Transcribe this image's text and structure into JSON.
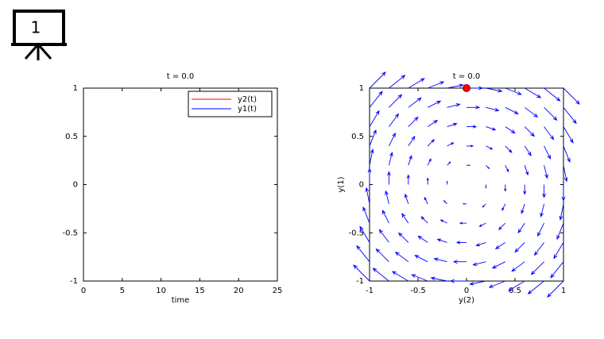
{
  "badge": "1",
  "chart_data": [
    {
      "type": "line",
      "title": "t = 0.0",
      "xlabel": "time",
      "xlim": [
        0,
        25
      ],
      "ylim": [
        -1,
        1
      ],
      "xticks": [
        0,
        5,
        10,
        15,
        20,
        25
      ],
      "yticks": [
        -1,
        -0.5,
        0,
        0.5,
        1
      ],
      "x": [],
      "series": [
        {
          "name": "y2(t)",
          "color": "#ff0000",
          "values": []
        },
        {
          "name": "y1(t)",
          "color": "#0000ff",
          "values": []
        }
      ],
      "legend": "upper right"
    },
    {
      "type": "quiver",
      "title": "t = 0.0",
      "xlabel": "y(2)",
      "ylabel": "y(1)",
      "xlim": [
        -1,
        1
      ],
      "ylim": [
        -1,
        1
      ],
      "xticks": [
        -1,
        -0.5,
        0,
        0.5,
        1
      ],
      "yticks": [
        -1,
        -0.5,
        0,
        0.5,
        1
      ],
      "color": "#0000ff",
      "x": [
        -1,
        -0.8,
        -0.6,
        -0.4,
        -0.2,
        0,
        0.2,
        0.4,
        0.6,
        0.8,
        1
      ],
      "y": [
        -1,
        -0.8,
        -0.6,
        -0.4,
        -0.2,
        0,
        0.2,
        0.4,
        0.6,
        0.8,
        1
      ],
      "u": [
        [
          -1,
          -1,
          -1,
          -1,
          -1,
          -1,
          -1,
          -1,
          -1,
          -1,
          -1
        ],
        [
          -0.8,
          -0.8,
          -0.8,
          -0.8,
          -0.8,
          -0.8,
          -0.8,
          -0.8,
          -0.8,
          -0.8,
          -0.8
        ],
        [
          -0.6,
          -0.6,
          -0.6,
          -0.6,
          -0.6,
          -0.6,
          -0.6,
          -0.6,
          -0.6,
          -0.6,
          -0.6
        ],
        [
          -0.4,
          -0.4,
          -0.4,
          -0.4,
          -0.4,
          -0.4,
          -0.4,
          -0.4,
          -0.4,
          -0.4,
          -0.4
        ],
        [
          -0.2,
          -0.2,
          -0.2,
          -0.2,
          -0.2,
          -0.2,
          -0.2,
          -0.2,
          -0.2,
          -0.2,
          -0.2
        ],
        [
          0,
          0,
          0,
          0,
          0,
          0,
          0,
          0,
          0,
          0,
          0
        ],
        [
          0.2,
          0.2,
          0.2,
          0.2,
          0.2,
          0.2,
          0.2,
          0.2,
          0.2,
          0.2,
          0.2
        ],
        [
          0.4,
          0.4,
          0.4,
          0.4,
          0.4,
          0.4,
          0.4,
          0.4,
          0.4,
          0.4,
          0.4
        ],
        [
          0.6,
          0.6,
          0.6,
          0.6,
          0.6,
          0.6,
          0.6,
          0.6,
          0.6,
          0.6,
          0.6
        ],
        [
          0.8,
          0.8,
          0.8,
          0.8,
          0.8,
          0.8,
          0.8,
          0.8,
          0.8,
          0.8,
          0.8
        ],
        [
          1,
          1,
          1,
          1,
          1,
          1,
          1,
          1,
          1,
          1,
          1
        ]
      ],
      "v": [
        [
          1,
          0.8,
          0.6,
          0.4,
          0.2,
          0,
          -0.2,
          -0.4,
          -0.6,
          -0.8,
          -1
        ],
        [
          1,
          0.8,
          0.6,
          0.4,
          0.2,
          0,
          -0.2,
          -0.4,
          -0.6,
          -0.8,
          -1
        ],
        [
          1,
          0.8,
          0.6,
          0.4,
          0.2,
          0,
          -0.2,
          -0.4,
          -0.6,
          -0.8,
          -1
        ],
        [
          1,
          0.8,
          0.6,
          0.4,
          0.2,
          0,
          -0.2,
          -0.4,
          -0.6,
          -0.8,
          -1
        ],
        [
          1,
          0.8,
          0.6,
          0.4,
          0.2,
          0,
          -0.2,
          -0.4,
          -0.6,
          -0.8,
          -1
        ],
        [
          1,
          0.8,
          0.6,
          0.4,
          0.2,
          0,
          -0.2,
          -0.4,
          -0.6,
          -0.8,
          -1
        ],
        [
          1,
          0.8,
          0.6,
          0.4,
          0.2,
          0,
          -0.2,
          -0.4,
          -0.6,
          -0.8,
          -1
        ],
        [
          1,
          0.8,
          0.6,
          0.4,
          0.2,
          0,
          -0.2,
          -0.4,
          -0.6,
          -0.8,
          -1
        ],
        [
          1,
          0.8,
          0.6,
          0.4,
          0.2,
          0,
          -0.2,
          -0.4,
          -0.6,
          -0.8,
          -1
        ],
        [
          1,
          0.8,
          0.6,
          0.4,
          0.2,
          0,
          -0.2,
          -0.4,
          -0.6,
          -0.8,
          -1
        ],
        [
          1,
          0.8,
          0.6,
          0.4,
          0.2,
          0,
          -0.2,
          -0.4,
          -0.6,
          -0.8,
          -1
        ]
      ],
      "point": {
        "x": 0,
        "y": 1,
        "color": "#ff0000"
      }
    }
  ]
}
